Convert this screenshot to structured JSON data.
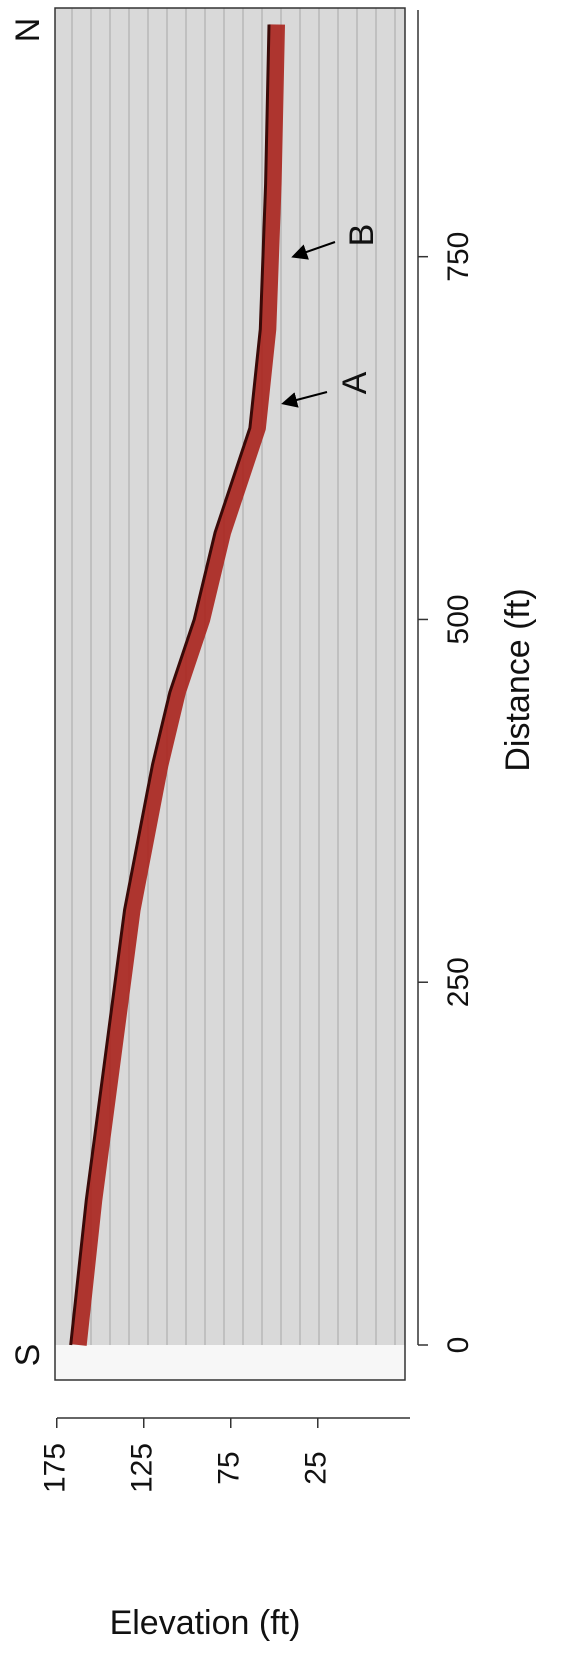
{
  "chart_data": {
    "type": "line",
    "x_label": "Distance (ft)",
    "y_label": "Elevation (ft)",
    "x": [
      0,
      100,
      200,
      300,
      400,
      450,
      500,
      560,
      632,
      700,
      800,
      910
    ],
    "values": [
      167,
      158,
      147,
      136,
      120,
      110,
      96,
      84,
      64,
      58,
      55,
      53
    ],
    "color": "#a8221c",
    "xlim": [
      0,
      920
    ],
    "xticks": [
      0,
      250,
      500,
      750
    ],
    "ylim": [
      -28,
      176
    ],
    "yticks": [
      175,
      125,
      75,
      25
    ],
    "direction_labels": [
      "S",
      "N"
    ],
    "annotations": [
      "A",
      "B"
    ]
  }
}
